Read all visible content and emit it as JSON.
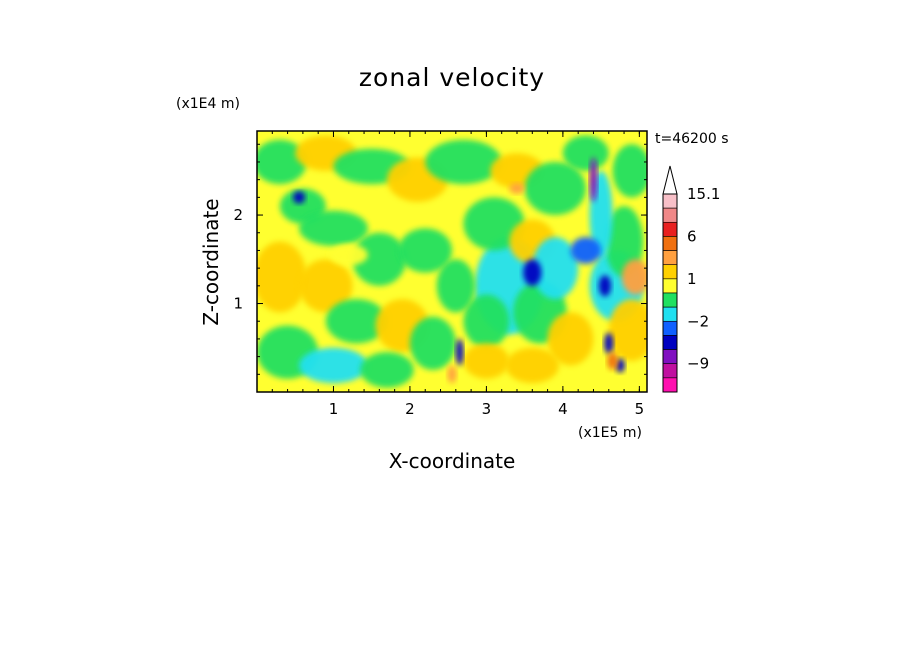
{
  "chart_data": {
    "type": "heatmap",
    "title": "zonal velocity",
    "xlabel": "X-coordinate",
    "ylabel": "Z-coordinate",
    "x_unit": "(x1E5 m)",
    "y_unit": "(x1E4 m)",
    "time_label": "t=46200 s",
    "xlim": [
      0,
      5.1
    ],
    "ylim": [
      0,
      2.95
    ],
    "x_ticks": [
      "1",
      "2",
      "3",
      "4",
      "5"
    ],
    "y_ticks": [
      "1",
      "2"
    ],
    "colorbar": {
      "levels": [
        {
          "upper": null,
          "color": "#ffffff",
          "label": ""
        },
        {
          "upper": 15.1,
          "color": "#f8c0c8",
          "label": "15.1"
        },
        {
          "upper": 12,
          "color": "#f08888",
          "label": ""
        },
        {
          "upper": 9,
          "color": "#e82020",
          "label": ""
        },
        {
          "upper": 6,
          "color": "#f07010",
          "label": "6"
        },
        {
          "upper": 3,
          "color": "#ffa040",
          "label": ""
        },
        {
          "upper": 2,
          "color": "#ffd000",
          "label": ""
        },
        {
          "upper": 1,
          "color": "#ffff30",
          "label": "1"
        },
        {
          "upper": 0,
          "color": "#20e060",
          "label": ""
        },
        {
          "upper": -1,
          "color": "#20e0f0",
          "label": ""
        },
        {
          "upper": -2,
          "color": "#1060ff",
          "label": "-2"
        },
        {
          "upper": -3,
          "color": "#0000c0",
          "label": ""
        },
        {
          "upper": -6,
          "color": "#8010c0",
          "label": ""
        },
        {
          "upper": -9,
          "color": "#c010a0",
          "label": "-9"
        },
        {
          "upper": -12,
          "color": "#ff10b0",
          "label": ""
        }
      ]
    },
    "field_description_note": ""
  }
}
